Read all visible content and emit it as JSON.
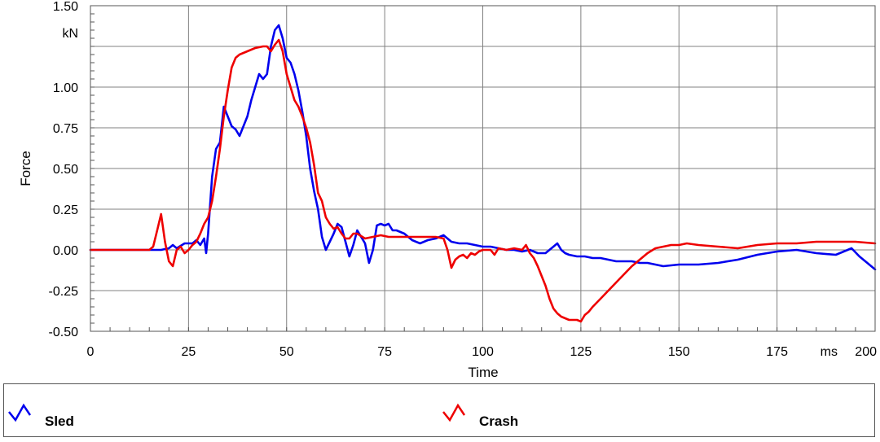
{
  "chart_data": {
    "type": "line",
    "title": "",
    "xlabel": "Time",
    "ylabel": "Force",
    "x_unit": "ms",
    "y_unit": "kN",
    "xlim": [
      0,
      200
    ],
    "ylim": [
      -0.5,
      1.5
    ],
    "x_ticks": [
      0,
      25,
      50,
      75,
      100,
      125,
      150,
      175,
      200
    ],
    "y_ticks": [
      -0.5,
      -0.25,
      0,
      0.25,
      0.5,
      0.75,
      1.0,
      1.25,
      1.5
    ],
    "x_tick_labels": [
      "0",
      "25",
      "50",
      "75",
      "100",
      "125",
      "150",
      "175",
      "200"
    ],
    "y_tick_labels": [
      "-0.50",
      "-0.25",
      "0.00",
      "0.25",
      "0.50",
      "0.75",
      "1.00",
      "",
      "1.50"
    ],
    "grid": true,
    "legend_position": "bottom",
    "series": [
      {
        "name": "Sled",
        "color": "#0000ee",
        "points": [
          [
            0,
            0.0
          ],
          [
            10,
            0.0
          ],
          [
            18,
            0.0
          ],
          [
            20,
            0.01
          ],
          [
            21,
            0.03
          ],
          [
            22,
            0.01
          ],
          [
            24,
            0.04
          ],
          [
            26,
            0.04
          ],
          [
            27,
            0.06
          ],
          [
            28,
            0.03
          ],
          [
            29,
            0.07
          ],
          [
            29.5,
            -0.02
          ],
          [
            30,
            0.1
          ],
          [
            31,
            0.45
          ],
          [
            32,
            0.62
          ],
          [
            33,
            0.66
          ],
          [
            34,
            0.88
          ],
          [
            35,
            0.82
          ],
          [
            36,
            0.76
          ],
          [
            37,
            0.74
          ],
          [
            38,
            0.7
          ],
          [
            39,
            0.76
          ],
          [
            40,
            0.82
          ],
          [
            41,
            0.92
          ],
          [
            42,
            1.0
          ],
          [
            43,
            1.08
          ],
          [
            44,
            1.05
          ],
          [
            45,
            1.08
          ],
          [
            46,
            1.25
          ],
          [
            47,
            1.35
          ],
          [
            48,
            1.38
          ],
          [
            49,
            1.3
          ],
          [
            50,
            1.18
          ],
          [
            51,
            1.15
          ],
          [
            52,
            1.08
          ],
          [
            53,
            0.98
          ],
          [
            54,
            0.85
          ],
          [
            55,
            0.7
          ],
          [
            56,
            0.5
          ],
          [
            57,
            0.36
          ],
          [
            58,
            0.25
          ],
          [
            59,
            0.08
          ],
          [
            60,
            0.0
          ],
          [
            61,
            0.05
          ],
          [
            62,
            0.1
          ],
          [
            63,
            0.16
          ],
          [
            64,
            0.14
          ],
          [
            65,
            0.05
          ],
          [
            66,
            -0.04
          ],
          [
            67,
            0.03
          ],
          [
            68,
            0.12
          ],
          [
            69,
            0.08
          ],
          [
            70,
            0.04
          ],
          [
            71,
            -0.08
          ],
          [
            72,
            0.0
          ],
          [
            73,
            0.15
          ],
          [
            74,
            0.16
          ],
          [
            75,
            0.15
          ],
          [
            76,
            0.16
          ],
          [
            77,
            0.12
          ],
          [
            78,
            0.12
          ],
          [
            80,
            0.1
          ],
          [
            82,
            0.06
          ],
          [
            84,
            0.04
          ],
          [
            86,
            0.06
          ],
          [
            88,
            0.07
          ],
          [
            90,
            0.09
          ],
          [
            92,
            0.05
          ],
          [
            94,
            0.04
          ],
          [
            96,
            0.04
          ],
          [
            98,
            0.03
          ],
          [
            100,
            0.02
          ],
          [
            102,
            0.02
          ],
          [
            104,
            0.01
          ],
          [
            106,
            0.0
          ],
          [
            108,
            0.0
          ],
          [
            110,
            -0.01
          ],
          [
            112,
            0.0
          ],
          [
            114,
            -0.02
          ],
          [
            116,
            -0.02
          ],
          [
            118,
            0.02
          ],
          [
            119,
            0.04
          ],
          [
            120,
            0.0
          ],
          [
            121,
            -0.02
          ],
          [
            122,
            -0.03
          ],
          [
            124,
            -0.04
          ],
          [
            126,
            -0.04
          ],
          [
            128,
            -0.05
          ],
          [
            130,
            -0.05
          ],
          [
            134,
            -0.07
          ],
          [
            138,
            -0.07
          ],
          [
            140,
            -0.08
          ],
          [
            142,
            -0.08
          ],
          [
            146,
            -0.1
          ],
          [
            150,
            -0.09
          ],
          [
            155,
            -0.09
          ],
          [
            160,
            -0.08
          ],
          [
            165,
            -0.06
          ],
          [
            170,
            -0.03
          ],
          [
            175,
            -0.01
          ],
          [
            180,
            0.0
          ],
          [
            185,
            -0.02
          ],
          [
            190,
            -0.03
          ],
          [
            192,
            -0.01
          ],
          [
            194,
            0.01
          ],
          [
            196,
            -0.04
          ],
          [
            198,
            -0.08
          ],
          [
            200,
            -0.12
          ]
        ]
      },
      {
        "name": "Crash",
        "color": "#ee0000",
        "points": [
          [
            0,
            0.0
          ],
          [
            10,
            0.0
          ],
          [
            15,
            0.0
          ],
          [
            16,
            0.02
          ],
          [
            17,
            0.12
          ],
          [
            18,
            0.22
          ],
          [
            19,
            0.05
          ],
          [
            20,
            -0.07
          ],
          [
            21,
            -0.1
          ],
          [
            22,
            0.0
          ],
          [
            23,
            0.02
          ],
          [
            24,
            -0.02
          ],
          [
            25,
            0.0
          ],
          [
            26,
            0.03
          ],
          [
            27,
            0.05
          ],
          [
            28,
            0.1
          ],
          [
            29,
            0.16
          ],
          [
            30,
            0.2
          ],
          [
            31,
            0.3
          ],
          [
            32,
            0.45
          ],
          [
            33,
            0.62
          ],
          [
            34,
            0.82
          ],
          [
            35,
            0.98
          ],
          [
            36,
            1.12
          ],
          [
            37,
            1.18
          ],
          [
            38,
            1.2
          ],
          [
            40,
            1.22
          ],
          [
            42,
            1.24
          ],
          [
            44,
            1.25
          ],
          [
            45,
            1.25
          ],
          [
            46,
            1.22
          ],
          [
            47,
            1.26
          ],
          [
            48,
            1.29
          ],
          [
            49,
            1.22
          ],
          [
            50,
            1.08
          ],
          [
            51,
            1.0
          ],
          [
            52,
            0.92
          ],
          [
            53,
            0.88
          ],
          [
            54,
            0.82
          ],
          [
            55,
            0.75
          ],
          [
            56,
            0.66
          ],
          [
            57,
            0.52
          ],
          [
            58,
            0.35
          ],
          [
            59,
            0.3
          ],
          [
            60,
            0.2
          ],
          [
            61,
            0.16
          ],
          [
            62,
            0.13
          ],
          [
            63,
            0.14
          ],
          [
            64,
            0.1
          ],
          [
            65,
            0.07
          ],
          [
            66,
            0.07
          ],
          [
            67,
            0.1
          ],
          [
            68,
            0.1
          ],
          [
            70,
            0.07
          ],
          [
            72,
            0.08
          ],
          [
            74,
            0.09
          ],
          [
            76,
            0.08
          ],
          [
            80,
            0.08
          ],
          [
            84,
            0.08
          ],
          [
            88,
            0.08
          ],
          [
            90,
            0.07
          ],
          [
            91,
            0.0
          ],
          [
            92,
            -0.11
          ],
          [
            93,
            -0.06
          ],
          [
            94,
            -0.04
          ],
          [
            95,
            -0.03
          ],
          [
            96,
            -0.05
          ],
          [
            97,
            -0.02
          ],
          [
            98,
            -0.03
          ],
          [
            99,
            -0.01
          ],
          [
            100,
            0.0
          ],
          [
            102,
            0.0
          ],
          [
            103,
            -0.03
          ],
          [
            104,
            0.01
          ],
          [
            106,
            0.0
          ],
          [
            108,
            0.01
          ],
          [
            110,
            0.0
          ],
          [
            111,
            0.03
          ],
          [
            112,
            -0.02
          ],
          [
            113,
            -0.05
          ],
          [
            114,
            -0.1
          ],
          [
            115,
            -0.16
          ],
          [
            116,
            -0.22
          ],
          [
            117,
            -0.3
          ],
          [
            118,
            -0.36
          ],
          [
            119,
            -0.39
          ],
          [
            120,
            -0.41
          ],
          [
            122,
            -0.43
          ],
          [
            124,
            -0.43
          ],
          [
            125,
            -0.44
          ],
          [
            126,
            -0.4
          ],
          [
            127,
            -0.38
          ],
          [
            128,
            -0.35
          ],
          [
            130,
            -0.3
          ],
          [
            132,
            -0.25
          ],
          [
            134,
            -0.2
          ],
          [
            136,
            -0.15
          ],
          [
            138,
            -0.1
          ],
          [
            140,
            -0.06
          ],
          [
            142,
            -0.02
          ],
          [
            144,
            0.01
          ],
          [
            146,
            0.02
          ],
          [
            148,
            0.03
          ],
          [
            150,
            0.03
          ],
          [
            152,
            0.04
          ],
          [
            155,
            0.03
          ],
          [
            160,
            0.02
          ],
          [
            165,
            0.01
          ],
          [
            170,
            0.03
          ],
          [
            175,
            0.04
          ],
          [
            180,
            0.04
          ],
          [
            185,
            0.05
          ],
          [
            190,
            0.05
          ],
          [
            195,
            0.05
          ],
          [
            200,
            0.04
          ]
        ]
      }
    ]
  }
}
